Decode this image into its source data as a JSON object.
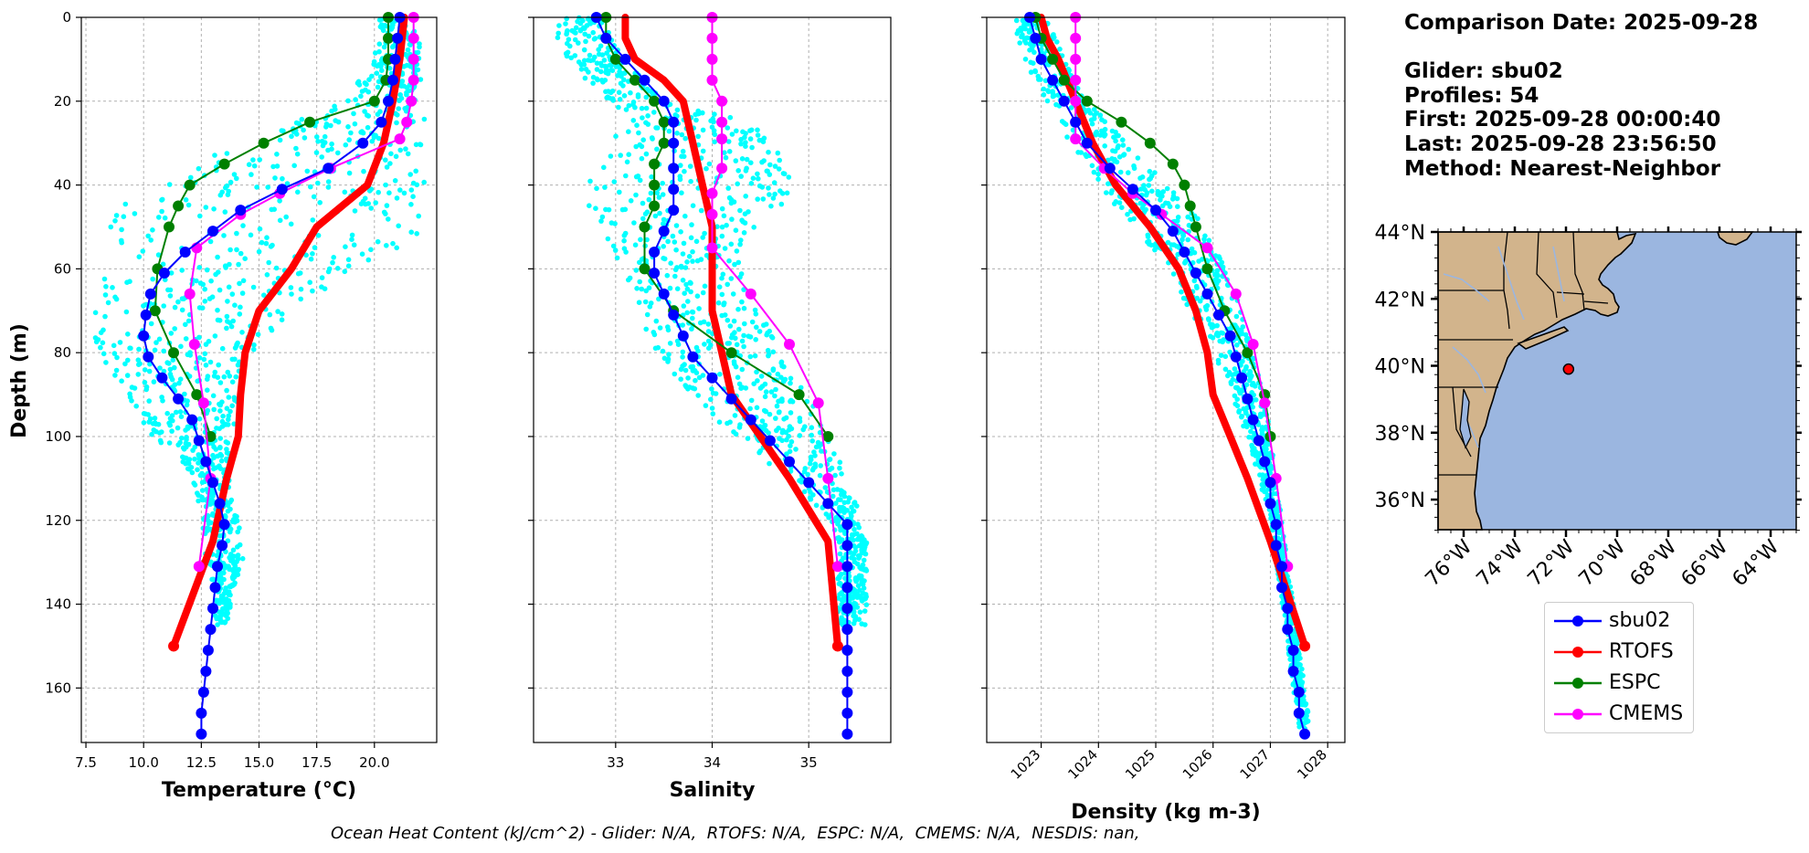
{
  "chart_data": [
    {
      "type": "line",
      "id": "temperature",
      "xlabel": "Temperature (°C)",
      "ylabel": "Depth (m)",
      "xlim": [
        7.3,
        22.7
      ],
      "ylim": [
        173,
        0
      ],
      "xticks": [
        7.5,
        10.0,
        12.5,
        15.0,
        17.5,
        20.0
      ],
      "xtick_labels": [
        "7.5",
        "10.0",
        "12.5",
        "15.0",
        "17.5",
        "20.0"
      ],
      "yticks": [
        0,
        20,
        40,
        60,
        80,
        100,
        120,
        140,
        160
      ],
      "ytick_labels": [
        "0",
        "20",
        "40",
        "60",
        "80",
        "100",
        "120",
        "140",
        "160"
      ],
      "grid": true,
      "scatter_envelope": {
        "name": "glider profiles",
        "depth": [
          0,
          10,
          20,
          25,
          30,
          35,
          40,
          45,
          50,
          55,
          60,
          65,
          70,
          75,
          80,
          85,
          90,
          95,
          100,
          105,
          110,
          115,
          120,
          125,
          130,
          135,
          140,
          145
        ],
        "min": [
          20.2,
          20.0,
          18.7,
          16.5,
          14.5,
          12.0,
          10.0,
          9.0,
          8.4,
          8.2,
          8.0,
          7.9,
          7.9,
          7.8,
          8.0,
          8.6,
          9.3,
          9.8,
          10.3,
          11.6,
          12.1,
          12.3,
          12.5,
          12.6,
          12.7,
          13.0,
          13.1,
          13.1
        ],
        "max": [
          21.9,
          22.0,
          22.1,
          22.2,
          22.2,
          22.2,
          22.2,
          22.2,
          22.2,
          21.7,
          19.5,
          17.8,
          16.5,
          15.5,
          14.7,
          14.2,
          14.1,
          14.0,
          13.8,
          13.7,
          13.7,
          13.8,
          14.1,
          14.3,
          14.3,
          14.0,
          13.8,
          13.6
        ]
      },
      "series": [
        {
          "name": "RTOFS",
          "depth": [
            0,
            5,
            10,
            20,
            30,
            40,
            45,
            50,
            60,
            70,
            80,
            90,
            100,
            110,
            125,
            150
          ],
          "values": [
            21.3,
            21.2,
            21.1,
            20.8,
            20.4,
            19.7,
            18.6,
            17.5,
            16.4,
            15.0,
            14.4,
            14.2,
            14.1,
            13.6,
            13.0,
            11.3
          ]
        },
        {
          "name": "ESPC",
          "depth": [
            0,
            5,
            10,
            15,
            20,
            25,
            30,
            35,
            40,
            45,
            50,
            60,
            70,
            80,
            90,
            100
          ],
          "values": [
            20.6,
            20.6,
            20.6,
            20.5,
            20.0,
            17.2,
            15.2,
            13.5,
            12.0,
            11.5,
            11.1,
            10.6,
            10.5,
            11.3,
            12.3,
            12.9
          ]
        },
        {
          "name": "CMEMS",
          "depth": [
            0,
            5,
            10,
            15,
            20,
            25,
            29,
            36,
            42,
            47,
            55,
            66,
            78,
            92,
            110,
            131
          ],
          "values": [
            21.7,
            21.7,
            21.7,
            21.7,
            21.6,
            21.4,
            21.1,
            18.1,
            15.9,
            14.2,
            12.3,
            12.0,
            12.2,
            12.6,
            12.9,
            12.4
          ]
        },
        {
          "name": "sbu02",
          "depth": [
            0,
            5,
            10,
            15,
            20,
            25,
            30,
            36,
            41,
            46,
            51,
            56,
            61,
            66,
            71,
            76,
            81,
            86,
            91,
            96,
            101,
            106,
            111,
            116,
            121,
            126,
            131,
            136,
            141,
            146,
            151,
            156,
            161,
            166,
            171
          ],
          "values": [
            21.1,
            21.0,
            20.9,
            20.8,
            20.6,
            20.3,
            19.5,
            18.0,
            16.0,
            14.2,
            13.0,
            11.8,
            10.9,
            10.3,
            10.1,
            10.0,
            10.2,
            10.8,
            11.5,
            12.1,
            12.4,
            12.7,
            13.0,
            13.3,
            13.5,
            13.4,
            13.2,
            13.1,
            13.0,
            12.9,
            12.8,
            12.7,
            12.6,
            12.5,
            12.5
          ]
        }
      ]
    },
    {
      "type": "line",
      "id": "salinity",
      "xlabel": "Salinity",
      "ylabel": "",
      "xlim": [
        32.15,
        35.85
      ],
      "ylim": [
        173,
        0
      ],
      "xticks": [
        33,
        34,
        35
      ],
      "xtick_labels": [
        "33",
        "34",
        "35"
      ],
      "yticks": [
        0,
        20,
        40,
        60,
        80,
        100,
        120,
        140,
        160
      ],
      "grid": true,
      "scatter_envelope": {
        "name": "glider profiles",
        "depth": [
          0,
          10,
          20,
          25,
          30,
          35,
          40,
          45,
          50,
          55,
          60,
          65,
          70,
          75,
          80,
          85,
          90,
          95,
          100,
          105,
          110,
          115,
          120,
          125,
          130,
          135,
          140,
          145
        ],
        "min": [
          32.3,
          32.5,
          32.9,
          33.1,
          32.9,
          32.8,
          32.7,
          32.7,
          32.8,
          32.9,
          33.0,
          33.1,
          33.2,
          33.3,
          33.4,
          33.6,
          33.8,
          34.0,
          34.2,
          34.5,
          34.8,
          35.0,
          35.2,
          35.3,
          35.3,
          35.3,
          35.3,
          35.3
        ],
        "max": [
          32.9,
          33.1,
          33.5,
          34.4,
          34.6,
          34.8,
          34.8,
          34.8,
          34.5,
          34.3,
          34.3,
          34.4,
          34.5,
          34.6,
          34.7,
          34.8,
          35.0,
          35.1,
          35.2,
          35.3,
          35.4,
          35.5,
          35.5,
          35.6,
          35.6,
          35.6,
          35.6,
          35.6
        ]
      },
      "series": [
        {
          "name": "RTOFS",
          "depth": [
            0,
            5,
            10,
            15,
            20,
            30,
            40,
            50,
            60,
            70,
            80,
            90,
            100,
            110,
            125,
            150
          ],
          "values": [
            33.1,
            33.1,
            33.2,
            33.5,
            33.7,
            33.8,
            33.9,
            34.0,
            34.0,
            34.0,
            34.1,
            34.2,
            34.5,
            34.8,
            35.2,
            35.3
          ]
        },
        {
          "name": "ESPC",
          "depth": [
            0,
            5,
            10,
            15,
            20,
            25,
            30,
            35,
            40,
            45,
            50,
            60,
            70,
            80,
            90,
            100
          ],
          "values": [
            32.9,
            32.9,
            33.0,
            33.2,
            33.4,
            33.5,
            33.5,
            33.4,
            33.4,
            33.4,
            33.3,
            33.3,
            33.6,
            34.2,
            34.9,
            35.2
          ]
        },
        {
          "name": "CMEMS",
          "depth": [
            0,
            5,
            10,
            15,
            20,
            25,
            29,
            36,
            42,
            47,
            55,
            66,
            78,
            92,
            110,
            131
          ],
          "values": [
            34.0,
            34.0,
            34.0,
            34.0,
            34.1,
            34.1,
            34.1,
            34.1,
            34.0,
            34.0,
            34.0,
            34.4,
            34.8,
            35.1,
            35.2,
            35.3
          ]
        },
        {
          "name": "sbu02",
          "depth": [
            0,
            5,
            10,
            15,
            20,
            25,
            30,
            36,
            41,
            46,
            51,
            56,
            61,
            66,
            71,
            76,
            81,
            86,
            91,
            96,
            101,
            106,
            111,
            116,
            121,
            126,
            131,
            136,
            141,
            146,
            151,
            156,
            161,
            166,
            171
          ],
          "values": [
            32.8,
            32.9,
            33.1,
            33.3,
            33.5,
            33.6,
            33.6,
            33.6,
            33.6,
            33.6,
            33.5,
            33.4,
            33.4,
            33.5,
            33.6,
            33.7,
            33.8,
            34.0,
            34.2,
            34.4,
            34.6,
            34.8,
            35.0,
            35.2,
            35.4,
            35.4,
            35.4,
            35.4,
            35.4,
            35.4,
            35.4,
            35.4,
            35.4,
            35.4,
            35.4
          ]
        }
      ]
    },
    {
      "type": "line",
      "id": "density",
      "xlabel": "Density (kg m-3)",
      "ylabel": "",
      "xlim": [
        1022.05,
        1028.3
      ],
      "ylim": [
        173,
        0
      ],
      "xticks": [
        1023,
        1024,
        1025,
        1026,
        1027,
        1028
      ],
      "xtick_labels": [
        "1023",
        "1024",
        "1025",
        "1026",
        "1027",
        "1028"
      ],
      "yticks": [
        0,
        20,
        40,
        60,
        80,
        100,
        120,
        140,
        160
      ],
      "grid": true,
      "scatter_envelope": {
        "name": "glider profiles",
        "depth": [
          0,
          10,
          20,
          30,
          40,
          50,
          60,
          70,
          80,
          90,
          100,
          110,
          120,
          130,
          140,
          150,
          160,
          170
        ],
        "min": [
          1022.5,
          1022.7,
          1023.1,
          1023.5,
          1024.0,
          1024.6,
          1025.2,
          1025.6,
          1026.0,
          1026.3,
          1026.6,
          1026.8,
          1027.0,
          1027.1,
          1027.2,
          1027.3,
          1027.4,
          1027.5
        ],
        "max": [
          1023.1,
          1023.4,
          1023.8,
          1024.5,
          1025.2,
          1025.9,
          1026.2,
          1026.5,
          1026.7,
          1026.9,
          1027.0,
          1027.1,
          1027.2,
          1027.3,
          1027.4,
          1027.5,
          1027.6,
          1027.7
        ]
      },
      "series": [
        {
          "name": "RTOFS",
          "depth": [
            0,
            5,
            10,
            20,
            30,
            40,
            50,
            60,
            70,
            80,
            90,
            100,
            110,
            125,
            150
          ],
          "values": [
            1023.0,
            1023.1,
            1023.3,
            1023.6,
            1023.9,
            1024.3,
            1024.9,
            1025.4,
            1025.7,
            1025.9,
            1026.0,
            1026.3,
            1026.6,
            1027.0,
            1027.6
          ]
        },
        {
          "name": "ESPC",
          "depth": [
            0,
            5,
            10,
            15,
            20,
            25,
            30,
            35,
            40,
            45,
            50,
            60,
            70,
            80,
            90,
            100
          ],
          "values": [
            1022.9,
            1023.0,
            1023.2,
            1023.4,
            1023.8,
            1024.4,
            1024.9,
            1025.3,
            1025.5,
            1025.6,
            1025.7,
            1025.9,
            1026.2,
            1026.6,
            1026.9,
            1027.0
          ]
        },
        {
          "name": "CMEMS",
          "depth": [
            0,
            5,
            10,
            15,
            20,
            25,
            29,
            36,
            42,
            47,
            55,
            66,
            78,
            92,
            110,
            131
          ],
          "values": [
            1023.6,
            1023.6,
            1023.6,
            1023.6,
            1023.6,
            1023.6,
            1023.6,
            1024.1,
            1024.6,
            1025.1,
            1025.9,
            1026.4,
            1026.7,
            1026.9,
            1027.1,
            1027.3
          ]
        },
        {
          "name": "sbu02",
          "depth": [
            0,
            5,
            10,
            15,
            20,
            25,
            30,
            36,
            41,
            46,
            51,
            56,
            61,
            66,
            71,
            76,
            81,
            86,
            91,
            96,
            101,
            106,
            111,
            116,
            121,
            126,
            131,
            136,
            141,
            146,
            151,
            156,
            161,
            166,
            171
          ],
          "values": [
            1022.8,
            1022.9,
            1023.0,
            1023.2,
            1023.4,
            1023.6,
            1023.8,
            1024.2,
            1024.6,
            1025.0,
            1025.3,
            1025.5,
            1025.7,
            1025.9,
            1026.1,
            1026.3,
            1026.4,
            1026.5,
            1026.6,
            1026.7,
            1026.8,
            1026.9,
            1027.0,
            1027.0,
            1027.1,
            1027.1,
            1027.2,
            1027.2,
            1027.3,
            1027.3,
            1027.4,
            1027.4,
            1027.5,
            1027.5,
            1027.6
          ]
        }
      ]
    }
  ],
  "series_colors": {
    "sbu02": "#0000ff",
    "RTOFS": "#ff0000",
    "ESPC": "#008000",
    "CMEMS": "#ff00ff",
    "scatter": "#00ffff"
  },
  "series_style": {
    "RTOFS": "thick",
    "ESPC": "markers",
    "CMEMS": "markers",
    "sbu02": "markers"
  },
  "info": {
    "date": "Comparison Date: 2025-09-28",
    "glider": "Glider: sbu02",
    "profiles": "Profiles: 54",
    "first": "First: 2025-09-28 00:00:40",
    "last": "Last: 2025-09-28 23:56:50",
    "method": "Method: Nearest-Neighbor"
  },
  "map": {
    "lat_labels": [
      "44°N",
      "42°N",
      "40°N",
      "38°N",
      "36°N"
    ],
    "lon_labels": [
      "76°W",
      "74°W",
      "72°W",
      "70°W",
      "68°W",
      "66°W",
      "64°W"
    ],
    "lat_range": [
      35.1,
      44.0
    ],
    "lon_range": [
      -77.0,
      -63.0
    ],
    "glider_location": {
      "lat": 39.9,
      "lon": -71.9
    },
    "land_color": "#d2b48c",
    "ocean_color": "#9bb6e0"
  },
  "legend": {
    "items": [
      "sbu02",
      "RTOFS",
      "ESPC",
      "CMEMS"
    ]
  },
  "footer": "Ocean Heat Content (kJ/cm^2) - Glider: N/A,  RTOFS: N/A,  ESPC: N/A,  CMEMS: N/A,  NESDIS: nan,"
}
